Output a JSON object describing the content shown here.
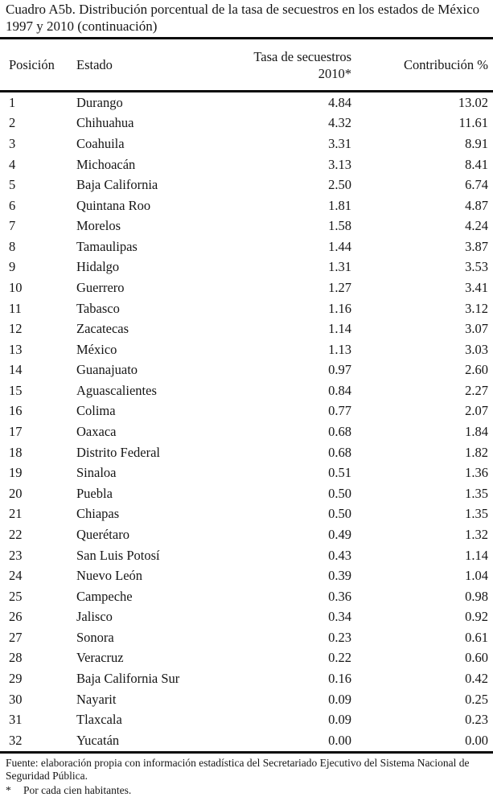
{
  "document": {
    "title": "Cuadro A5b. Distribución porcentual de la tasa de secuestros en los estados de México 1997 y 2010 (continuación)",
    "table": {
      "header": {
        "posicion": "Posición",
        "estado": "Estado",
        "tasa": "Tasa de secuestros 2010*",
        "contribucion": "Contribución %"
      },
      "rows": [
        [
          "1",
          "Durango",
          "4.84",
          "13.02"
        ],
        [
          "2",
          "Chihuahua",
          "4.32",
          "11.61"
        ],
        [
          "3",
          "Coahuila",
          "3.31",
          "8.91"
        ],
        [
          "4",
          "Michoacán",
          "3.13",
          "8.41"
        ],
        [
          "5",
          "Baja California",
          "2.50",
          "6.74"
        ],
        [
          "6",
          "Quintana Roo",
          "1.81",
          "4.87"
        ],
        [
          "7",
          "Morelos",
          "1.58",
          "4.24"
        ],
        [
          "8",
          "Tamaulipas",
          "1.44",
          "3.87"
        ],
        [
          "9",
          "Hidalgo",
          "1.31",
          "3.53"
        ],
        [
          "10",
          "Guerrero",
          "1.27",
          "3.41"
        ],
        [
          "11",
          "Tabasco",
          "1.16",
          "3.12"
        ],
        [
          "12",
          "Zacatecas",
          "1.14",
          "3.07"
        ],
        [
          "13",
          "México",
          "1.13",
          "3.03"
        ],
        [
          "14",
          "Guanajuato",
          "0.97",
          "2.60"
        ],
        [
          "15",
          "Aguascalientes",
          "0.84",
          "2.27"
        ],
        [
          "16",
          "Colima",
          "0.77",
          "2.07"
        ],
        [
          "17",
          "Oaxaca",
          "0.68",
          "1.84"
        ],
        [
          "18",
          "Distrito Federal",
          "0.68",
          "1.82"
        ],
        [
          "19",
          "Sinaloa",
          "0.51",
          "1.36"
        ],
        [
          "20",
          "Puebla",
          "0.50",
          "1.35"
        ],
        [
          "21",
          "Chiapas",
          "0.50",
          "1.35"
        ],
        [
          "22",
          "Querétaro",
          "0.49",
          "1.32"
        ],
        [
          "23",
          "San Luis Potosí",
          "0.43",
          "1.14"
        ],
        [
          "24",
          "Nuevo León",
          "0.39",
          "1.04"
        ],
        [
          "25",
          "Campeche",
          "0.36",
          "0.98"
        ],
        [
          "26",
          "Jalisco",
          "0.34",
          "0.92"
        ],
        [
          "27",
          "Sonora",
          "0.23",
          "0.61"
        ],
        [
          "28",
          "Veracruz",
          "0.22",
          "0.60"
        ],
        [
          "29",
          "Baja California Sur",
          "0.16",
          "0.42"
        ],
        [
          "30",
          "Nayarit",
          "0.09",
          "0.25"
        ],
        [
          "31",
          "Tlaxcala",
          "0.09",
          "0.23"
        ],
        [
          "32",
          "Yucatán",
          "0.00",
          "0.00"
        ]
      ]
    },
    "footer": {
      "fuente": "Fuente: elaboración propia con información estadística del Secretariado Ejecutivo del Sistema Nacional de Seguridad Pública.",
      "note_marker": "*",
      "note": "Por cada cien habitantes."
    }
  }
}
